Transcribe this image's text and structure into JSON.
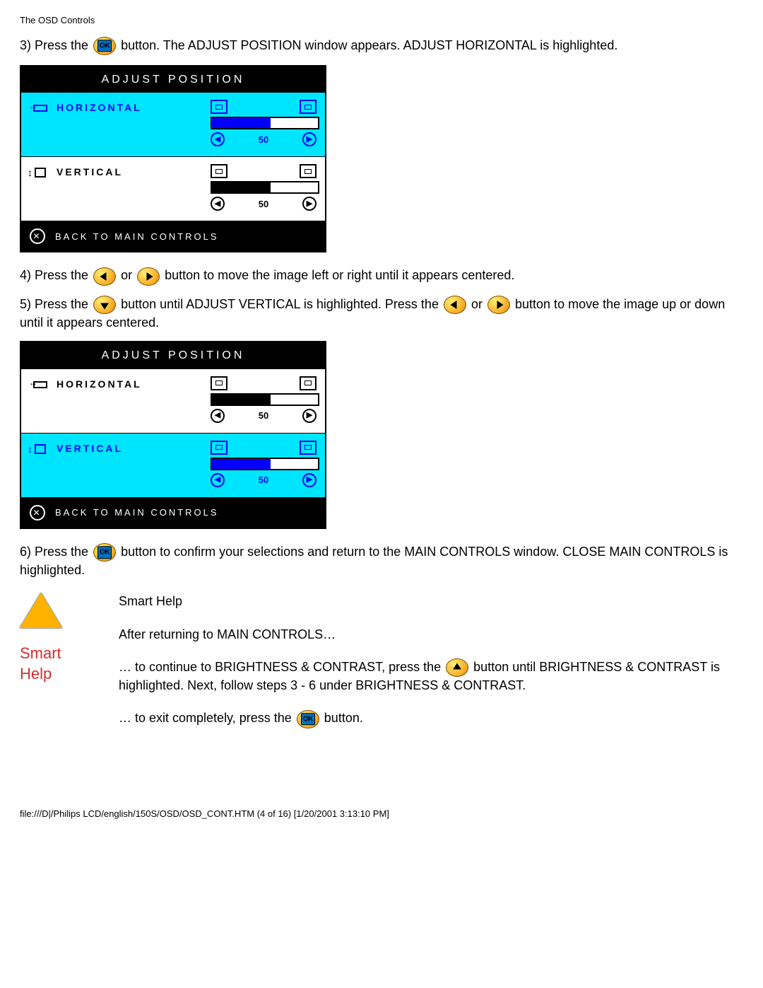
{
  "header": "The OSD Controls",
  "step3": {
    "prefix": "3) Press the ",
    "suffix": " button. The ADJUST POSITION window appears. ADJUST HORIZONTAL is highlighted."
  },
  "osd1": {
    "title": "Adjust Position",
    "row1": {
      "label": "Horizontal",
      "value": "50",
      "highlighted": true,
      "bar_fill_pct": 55
    },
    "row2": {
      "label": "Vertical",
      "value": "50",
      "highlighted": false,
      "bar_fill_pct": 55
    },
    "back": "BACK TO MAIN CONTROLS"
  },
  "step4": {
    "prefix": "4) Press the ",
    "mid": " or ",
    "suffix": " button to move the image left or right until it appears centered."
  },
  "step5": {
    "prefix": "5) Press the ",
    "mid1": " button until ADJUST VERTICAL is highlighted. Press the ",
    "mid2": " or ",
    "suffix": " button to move the image up or down until it appears centered."
  },
  "osd2": {
    "title": "Adjust Position",
    "row1": {
      "label": "Horizontal",
      "value": "50",
      "highlighted": false,
      "bar_fill_pct": 55
    },
    "row2": {
      "label": "Vertical",
      "value": "50",
      "highlighted": true,
      "bar_fill_pct": 55
    },
    "back": "BACK TO MAIN CONTROLS"
  },
  "step6": {
    "prefix": "6) Press the ",
    "suffix": " button to confirm your selections and return to the MAIN CONTROLS window. CLOSE MAIN CONTROLS is highlighted."
  },
  "smart": {
    "label1": "Smart",
    "label2": "Help",
    "p1": "Smart Help",
    "p2": "After returning to MAIN CONTROLS…",
    "p3a": "… to continue to BRIGHTNESS & CONTRAST, press the ",
    "p3b": " button until BRIGHTNESS & CONTRAST is highlighted. Next, follow steps 3 - 6 under BRIGHTNESS & CONTRAST.",
    "p4a": "… to exit completely, press the ",
    "p4b": " button."
  },
  "footer": "file:///D|/Philips LCD/english/150S/OSD/OSD_CONT.HTM (4 of 16) [1/20/2001 3:13:10 PM]",
  "colors": {
    "highlight_bg": "#00e5ff",
    "highlight_fg": "#0000ff",
    "smart_red": "#d32f2f",
    "button_yellow": "#f9a825"
  }
}
